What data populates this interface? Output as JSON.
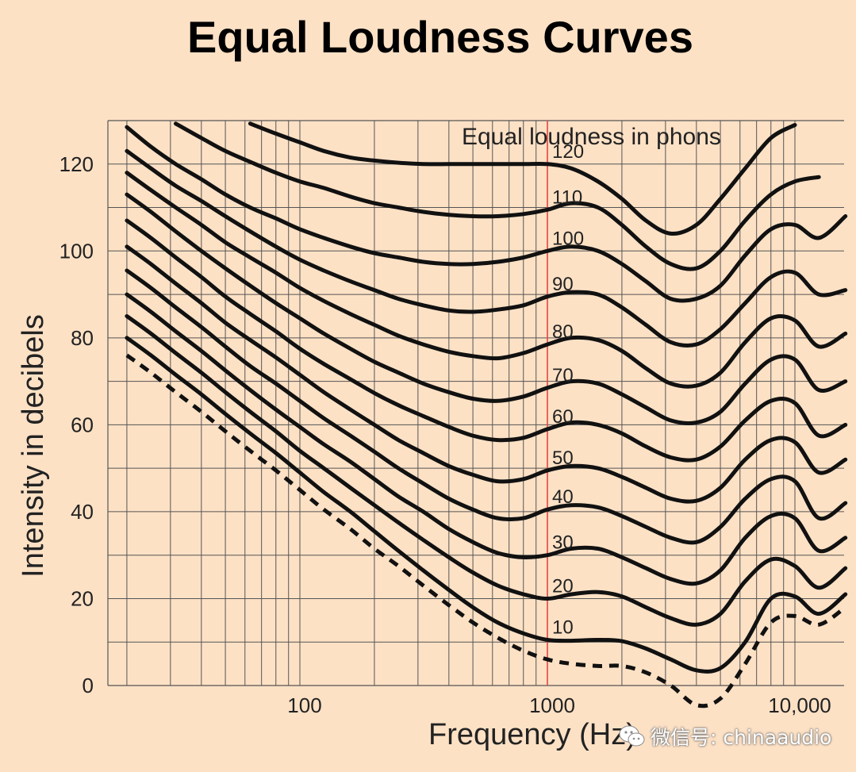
{
  "watermark": "微信号: chinaaudio",
  "colors": {
    "background": "#fde1c5",
    "curve": "#111111",
    "grid": "#555555",
    "highlight": "#e8453c"
  },
  "chart_data": {
    "type": "line",
    "title": "Equal Loudness Curves",
    "subtitle": "Equal loudness in phons",
    "xlabel": "Frequency (Hz)",
    "ylabel": "Intensity in decibels",
    "x_scale": "log",
    "xlim": [
      20,
      20000
    ],
    "ylim": [
      0,
      130
    ],
    "grid": true,
    "x_ticks": [
      {
        "value": 100,
        "label": "100"
      },
      {
        "value": 1000,
        "label": "1000",
        "color": "#e8453c"
      },
      {
        "value": 10000,
        "label": "10,000"
      }
    ],
    "y_ticks": [
      {
        "value": 0,
        "label": "0"
      },
      {
        "value": 20,
        "label": "20"
      },
      {
        "value": 40,
        "label": "40"
      },
      {
        "value": 60,
        "label": "60"
      },
      {
        "value": 80,
        "label": "80"
      },
      {
        "value": 100,
        "label": "100"
      },
      {
        "value": 120,
        "label": "120"
      }
    ],
    "reference_line": {
      "x": 1000,
      "color": "#e8453c"
    },
    "x": [
      20,
      25,
      31.5,
      40,
      50,
      63,
      80,
      100,
      125,
      160,
      200,
      250,
      315,
      400,
      500,
      630,
      800,
      1000,
      1250,
      1600,
      2000,
      2500,
      3150,
      4000,
      5000,
      6300,
      8000,
      10000,
      12500,
      16000
    ],
    "series": [
      {
        "name": "120",
        "values": [
          null,
          null,
          null,
          null,
          null,
          129.3,
          127,
          125,
          123,
          121.5,
          120.8,
          120.3,
          120,
          120,
          120,
          120,
          120,
          120,
          119,
          116,
          112,
          107,
          104,
          106,
          112,
          119,
          126,
          129,
          null,
          null
        ]
      },
      {
        "name": "110",
        "values": [
          null,
          null,
          129.3,
          126,
          123,
          120.5,
          118,
          116,
          114.5,
          112.5,
          111,
          110,
          109,
          108.3,
          108,
          108,
          108.5,
          109.5,
          111,
          110,
          106,
          101,
          97,
          96,
          100,
          107,
          113,
          116,
          117,
          null
        ]
      },
      {
        "name": "100",
        "values": [
          128.5,
          124,
          120,
          116.5,
          113,
          110,
          107.5,
          105,
          103,
          101,
          99.5,
          98.5,
          97.5,
          97,
          97,
          97.5,
          98.5,
          100,
          101,
          100,
          97,
          93,
          89,
          89,
          92,
          99,
          105,
          106,
          103,
          108
        ]
      },
      {
        "name": "90",
        "values": [
          123,
          119,
          115,
          111.5,
          108,
          104.5,
          101,
          98,
          95.5,
          93,
          91,
          89,
          87.5,
          86.3,
          86,
          86.5,
          87.5,
          89.5,
          90.5,
          90,
          87,
          83,
          79,
          78.5,
          82,
          88,
          94,
          95,
          90,
          91
        ]
      },
      {
        "name": "80",
        "values": [
          118,
          114,
          110,
          106,
          102,
          98.5,
          95,
          91.5,
          88.5,
          85.5,
          83,
          80.5,
          78.5,
          76.8,
          75.8,
          75.3,
          76.5,
          78.5,
          80,
          79.5,
          77,
          73,
          69.5,
          69,
          72,
          79,
          84.5,
          84,
          78,
          81
        ]
      },
      {
        "name": "70",
        "values": [
          113,
          109,
          104.5,
          100,
          96,
          92,
          88,
          84.5,
          81,
          77.5,
          74.5,
          72,
          69.5,
          67.5,
          66,
          65.5,
          66.5,
          68.5,
          70,
          69.5,
          67,
          64,
          61,
          60.5,
          63,
          69.5,
          75,
          75,
          68,
          70
        ]
      },
      {
        "name": "60",
        "values": [
          107,
          103,
          98.5,
          94,
          89.5,
          85.5,
          81.5,
          77.5,
          74,
          70.5,
          67.3,
          64.5,
          62,
          59.5,
          57.5,
          56.5,
          57,
          59,
          60.5,
          60,
          58,
          55,
          52.5,
          52,
          55,
          61,
          65.5,
          65,
          57.5,
          60
        ]
      },
      {
        "name": "50",
        "values": [
          101,
          97,
          92.5,
          88,
          83.5,
          79.5,
          75.5,
          71.5,
          67.5,
          63.5,
          60,
          56.5,
          53.5,
          50.5,
          48.5,
          47,
          47.5,
          49.5,
          50.5,
          50,
          48,
          45.5,
          43,
          42.5,
          45.5,
          52,
          56.5,
          56,
          49,
          52
        ]
      },
      {
        "name": "40",
        "values": [
          95.5,
          91.5,
          87,
          82.5,
          78,
          73.5,
          69.5,
          65.5,
          61.5,
          57.5,
          53.8,
          50,
          46.5,
          43,
          40.5,
          38.5,
          38.5,
          40.5,
          41.5,
          41,
          39,
          36.5,
          34,
          33,
          36.5,
          43,
          47.5,
          47,
          38.5,
          42
        ]
      },
      {
        "name": "30",
        "values": [
          90,
          86,
          81.5,
          77,
          72.5,
          68,
          63.5,
          59.5,
          55.5,
          51.5,
          47.5,
          43.5,
          40,
          36,
          33,
          30.5,
          29.5,
          30,
          31.5,
          31.5,
          29.5,
          27,
          24.5,
          23.5,
          26.5,
          34,
          39,
          38.5,
          31,
          34
        ]
      },
      {
        "name": "20",
        "values": [
          85,
          81,
          76.5,
          72,
          67.5,
          63,
          58.5,
          54,
          50,
          45.5,
          41.5,
          37.5,
          33.5,
          29.5,
          26,
          23,
          21,
          20,
          21,
          21.5,
          20.5,
          18,
          15.5,
          14,
          16.5,
          24,
          29,
          27.5,
          22.5,
          27
        ]
      },
      {
        "name": "10",
        "values": [
          80,
          76,
          71.5,
          67,
          62.5,
          58,
          53.5,
          49,
          44.5,
          40,
          35.5,
          31,
          26.5,
          22,
          18,
          14.5,
          12,
          10.5,
          10.3,
          10.5,
          10.2,
          8.5,
          6,
          3.5,
          4,
          10,
          20,
          20.5,
          16.5,
          21
        ]
      },
      {
        "name": "",
        "dashed": true,
        "values": [
          76,
          72,
          67.5,
          63,
          58.5,
          54,
          49.5,
          45,
          40.5,
          36,
          31.5,
          27.5,
          23,
          18.5,
          14.5,
          11,
          8,
          6,
          5,
          4.5,
          4.5,
          3,
          0,
          -4.5,
          -3,
          5,
          14.5,
          16,
          14,
          18
        ]
      }
    ]
  }
}
